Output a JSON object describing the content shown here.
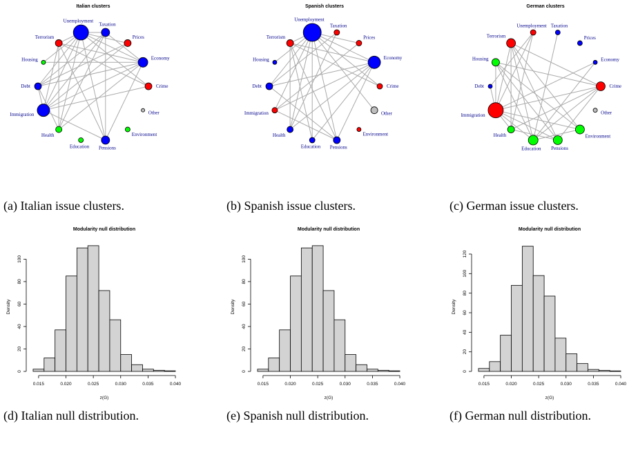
{
  "chart_data": [
    {
      "type": "network",
      "title": "Italian clusters",
      "label_color": "#00008b",
      "nodes": [
        {
          "label": "Unemployment",
          "color": "#0000ff",
          "size": 11
        },
        {
          "label": "Taxation",
          "color": "#0000ff",
          "size": 6
        },
        {
          "label": "Prices",
          "color": "#ff0000",
          "size": 5
        },
        {
          "label": "Economy",
          "color": "#0000ff",
          "size": 7
        },
        {
          "label": "Crime",
          "color": "#ff0000",
          "size": 5
        },
        {
          "label": "Other",
          "color": "#bebebe",
          "size": 2.5
        },
        {
          "label": "Environment",
          "color": "#00ff00",
          "size": 3.5
        },
        {
          "label": "Pensions",
          "color": "#0000ff",
          "size": 6
        },
        {
          "label": "Education",
          "color": "#00ff00",
          "size": 3.5
        },
        {
          "label": "Health",
          "color": "#00ff00",
          "size": 4.5
        },
        {
          "label": "Immigration",
          "color": "#0000ff",
          "size": 9
        },
        {
          "label": "Debt",
          "color": "#0000ff",
          "size": 5
        },
        {
          "label": "Housing",
          "color": "#00ff00",
          "size": 3
        },
        {
          "label": "Terrorism",
          "color": "#ff0000",
          "size": 5
        }
      ],
      "edges": [
        [
          0,
          10
        ],
        [
          0,
          3
        ],
        [
          0,
          11
        ],
        [
          0,
          13
        ],
        [
          0,
          9
        ],
        [
          0,
          7
        ],
        [
          0,
          4
        ],
        [
          0,
          2
        ],
        [
          0,
          1
        ],
        [
          1,
          10
        ],
        [
          1,
          11
        ],
        [
          1,
          7
        ],
        [
          1,
          3
        ],
        [
          2,
          10
        ],
        [
          2,
          11
        ],
        [
          3,
          10
        ],
        [
          3,
          11
        ],
        [
          3,
          13
        ],
        [
          3,
          9
        ],
        [
          3,
          7
        ],
        [
          4,
          10
        ],
        [
          4,
          13
        ],
        [
          13,
          10
        ],
        [
          13,
          7
        ],
        [
          13,
          9
        ],
        [
          10,
          7
        ],
        [
          10,
          11
        ],
        [
          11,
          9
        ],
        [
          12,
          3
        ],
        [
          1,
          9
        ],
        [
          0,
          12
        ]
      ]
    },
    {
      "type": "network",
      "title": "Spanish clusters",
      "label_color": "#00008b",
      "nodes": [
        {
          "label": "Unemployment",
          "color": "#0000ff",
          "size": 13
        },
        {
          "label": "Taxation",
          "color": "#ff0000",
          "size": 4
        },
        {
          "label": "Prices",
          "color": "#ff0000",
          "size": 4
        },
        {
          "label": "Economy",
          "color": "#0000ff",
          "size": 9
        },
        {
          "label": "Crime",
          "color": "#ff0000",
          "size": 4
        },
        {
          "label": "Other",
          "color": "#bebebe",
          "size": 5
        },
        {
          "label": "Environment",
          "color": "#ff0000",
          "size": 3
        },
        {
          "label": "Pensions",
          "color": "#0000ff",
          "size": 5
        },
        {
          "label": "Education",
          "color": "#0000ff",
          "size": 4
        },
        {
          "label": "Health",
          "color": "#0000ff",
          "size": 4.5
        },
        {
          "label": "Immigration",
          "color": "#ff0000",
          "size": 4
        },
        {
          "label": "Debt",
          "color": "#0000ff",
          "size": 5
        },
        {
          "label": "Housing",
          "color": "#0000ff",
          "size": 3
        },
        {
          "label": "Terrorism",
          "color": "#ff0000",
          "size": 5
        }
      ],
      "edges": [
        [
          0,
          10
        ],
        [
          0,
          3
        ],
        [
          0,
          11
        ],
        [
          0,
          13
        ],
        [
          0,
          9
        ],
        [
          0,
          7
        ],
        [
          0,
          8
        ],
        [
          0,
          4
        ],
        [
          0,
          2
        ],
        [
          0,
          12
        ],
        [
          1,
          11
        ],
        [
          1,
          9
        ],
        [
          2,
          10
        ],
        [
          3,
          10
        ],
        [
          3,
          11
        ],
        [
          3,
          13
        ],
        [
          3,
          9
        ],
        [
          3,
          7
        ],
        [
          13,
          7
        ],
        [
          13,
          8
        ],
        [
          13,
          9
        ],
        [
          10,
          7
        ],
        [
          11,
          7
        ],
        [
          4,
          13
        ],
        [
          3,
          8
        ],
        [
          0,
          5
        ]
      ]
    },
    {
      "type": "network",
      "title": "German clusters",
      "label_color": "#00008b",
      "nodes": [
        {
          "label": "Unemployment",
          "color": "#ff0000",
          "size": 4
        },
        {
          "label": "Taxation",
          "color": "#0000ff",
          "size": 3.5
        },
        {
          "label": "Prices",
          "color": "#0000ff",
          "size": 3.5
        },
        {
          "label": "Economy",
          "color": "#0000ff",
          "size": 3
        },
        {
          "label": "Crime",
          "color": "#ff0000",
          "size": 6.5
        },
        {
          "label": "Other",
          "color": "#bebebe",
          "size": 3
        },
        {
          "label": "Environment",
          "color": "#00ff00",
          "size": 6.5
        },
        {
          "label": "Pensions",
          "color": "#00ff00",
          "size": 6.5
        },
        {
          "label": "Education",
          "color": "#00ff00",
          "size": 7
        },
        {
          "label": "Health",
          "color": "#00ff00",
          "size": 5
        },
        {
          "label": "Immigration",
          "color": "#ff0000",
          "size": 11
        },
        {
          "label": "Debt",
          "color": "#0000ff",
          "size": 3
        },
        {
          "label": "Housing",
          "color": "#00ff00",
          "size": 5.5
        },
        {
          "label": "Terrorism",
          "color": "#ff0000",
          "size": 6.5
        }
      ],
      "edges": [
        [
          10,
          13
        ],
        [
          10,
          12
        ],
        [
          10,
          11
        ],
        [
          10,
          0
        ],
        [
          10,
          4
        ],
        [
          10,
          6
        ],
        [
          10,
          7
        ],
        [
          10,
          8
        ],
        [
          10,
          9
        ],
        [
          10,
          3
        ],
        [
          13,
          4
        ],
        [
          13,
          8
        ],
        [
          13,
          7
        ],
        [
          13,
          9
        ],
        [
          12,
          4
        ],
        [
          12,
          6
        ],
        [
          12,
          8
        ],
        [
          4,
          9
        ],
        [
          4,
          8
        ],
        [
          4,
          7
        ],
        [
          0,
          9
        ],
        [
          0,
          11
        ],
        [
          3,
          8
        ],
        [
          6,
          8
        ],
        [
          7,
          9
        ],
        [
          13,
          6
        ],
        [
          12,
          7
        ],
        [
          1,
          8
        ]
      ]
    },
    {
      "type": "histogram",
      "title": "Modularity null distribution",
      "xlabel": "z(G)",
      "ylabel": "Density",
      "color": "#d3d3d3",
      "bins": [
        0.014,
        0.016,
        0.018,
        0.02,
        0.022,
        0.024,
        0.026,
        0.028,
        0.03,
        0.032,
        0.034,
        0.036,
        0.038,
        0.04
      ],
      "values": [
        2,
        12,
        37,
        85,
        110,
        112,
        72,
        46,
        15,
        6,
        2,
        1,
        0.5
      ],
      "xlim": [
        0.0135,
        0.0405
      ],
      "ylim": [
        0,
        115
      ],
      "xticks": [
        0.015,
        {
          "value": 0.02,
          "label": "0.020"
        },
        0.025,
        {
          "value": 0.03,
          "label": "0.030"
        },
        0.035,
        {
          "value": 0.04,
          "label": "0.040"
        }
      ],
      "yticks": [
        0,
        20,
        40,
        60,
        80,
        100
      ]
    },
    {
      "type": "histogram",
      "title": "Modularity null distribution",
      "xlabel": "z(G)",
      "ylabel": "Density",
      "color": "#d3d3d3",
      "bins": [
        0.014,
        0.016,
        0.018,
        0.02,
        0.022,
        0.024,
        0.026,
        0.028,
        0.03,
        0.032,
        0.034,
        0.036,
        0.038,
        0.04
      ],
      "values": [
        2,
        12,
        37,
        85,
        110,
        112,
        72,
        46,
        15,
        6,
        2,
        1,
        0.5
      ],
      "xlim": [
        0.0135,
        0.0405
      ],
      "ylim": [
        0,
        115
      ],
      "xticks": [
        0.015,
        {
          "value": 0.02,
          "label": "0.020"
        },
        0.025,
        {
          "value": 0.03,
          "label": "0.030"
        },
        0.035,
        {
          "value": 0.04,
          "label": "0.040"
        }
      ],
      "yticks": [
        0,
        20,
        40,
        60,
        80,
        100
      ]
    },
    {
      "type": "histogram",
      "title": "Modularity null distribution",
      "xlabel": "z(G)",
      "ylabel": "Density",
      "color": "#d3d3d3",
      "bins": [
        0.014,
        0.016,
        0.018,
        0.02,
        0.022,
        0.024,
        0.026,
        0.028,
        0.03,
        0.032,
        0.034,
        0.036,
        0.038,
        0.04
      ],
      "values": [
        3,
        10,
        37,
        88,
        128,
        98,
        77,
        34,
        18,
        8,
        2,
        1,
        0.5
      ],
      "xlim": [
        0.0135,
        0.0405
      ],
      "ylim": [
        0,
        132
      ],
      "xticks": [
        0.015,
        {
          "value": 0.02,
          "label": "0.020"
        },
        0.025,
        {
          "value": 0.03,
          "label": "0.030"
        },
        0.035,
        {
          "value": 0.04,
          "label": "0.040"
        }
      ],
      "yticks": [
        0,
        20,
        40,
        60,
        80,
        100,
        120
      ]
    }
  ],
  "captions": [
    "(a) Italian issue clusters.",
    "(b) Spanish issue clusters.",
    "(c) German issue clusters.",
    "(d) Italian null distribution.",
    "(e) Spanish null distribution.",
    "(f) German null distribution."
  ]
}
